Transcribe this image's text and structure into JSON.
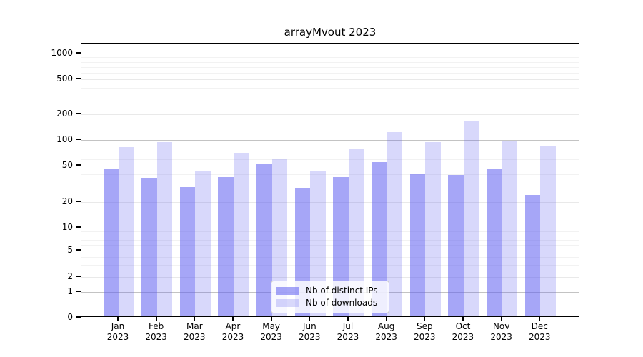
{
  "title": "arrayMvout 2023",
  "y_axis": {
    "tick_labels": [
      "0",
      "1",
      "2",
      "5",
      "10",
      "20",
      "50",
      "100",
      "200",
      "500",
      "1000"
    ]
  },
  "x_axis": {
    "months": [
      "Jan",
      "Feb",
      "Mar",
      "Apr",
      "May",
      "Jun",
      "Jul",
      "Aug",
      "Sep",
      "Oct",
      "Nov",
      "Dec"
    ],
    "year": "2023"
  },
  "legend": {
    "items": [
      {
        "label": "Nb of distinct IPs",
        "color": "rgba(93,93,240,0.55)"
      },
      {
        "label": "Nb of downloads",
        "color": "rgba(93,93,240,0.24)"
      }
    ]
  },
  "colors": {
    "bar_distinct_ips": "rgba(93,93,240,0.55)",
    "bar_downloads": "rgba(93,93,240,0.24)",
    "grid_major_power10": "#c3c3c3",
    "grid_major_other": "#e9e9e9",
    "grid_minor": "#f2f2f2"
  },
  "chart_data": {
    "type": "bar",
    "title": "arrayMvout 2023",
    "x_categories": [
      "Jan 2023",
      "Feb 2023",
      "Mar 2023",
      "Apr 2023",
      "May 2023",
      "Jun 2023",
      "Jul 2023",
      "Aug 2023",
      "Sep 2023",
      "Oct 2023",
      "Nov 2023",
      "Dec 2023"
    ],
    "series": [
      {
        "name": "Nb of distinct IPs",
        "color": "rgba(93,93,240,0.55)",
        "values": [
          44,
          35,
          28,
          36,
          50,
          27,
          36,
          53,
          39,
          38,
          44,
          23
        ]
      },
      {
        "name": "Nb of downloads",
        "color": "rgba(93,93,240,0.24)",
        "values": [
          80,
          90,
          42,
          68,
          57,
          42,
          75,
          120,
          90,
          160,
          92,
          81
        ]
      }
    ],
    "y_scale": "symlog",
    "y_ticks": [
      0,
      1,
      2,
      5,
      10,
      20,
      50,
      100,
      200,
      500,
      1000
    ],
    "y_minor_ticks": [
      3,
      4,
      6,
      7,
      8,
      9,
      30,
      40,
      60,
      70,
      80,
      90,
      300,
      400,
      600,
      700,
      800,
      900
    ],
    "ylim": [
      0,
      1400
    ],
    "xlabel": "",
    "ylabel": "",
    "grid": true,
    "legend_position": "lower center"
  }
}
